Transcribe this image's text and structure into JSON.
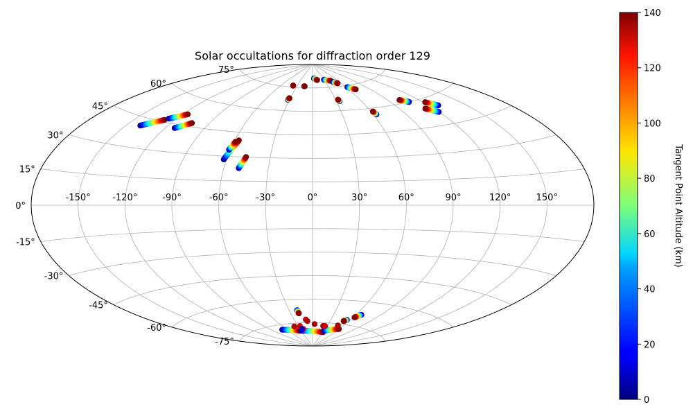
{
  "chart_data": {
    "type": "scatter",
    "projection": "aitoff",
    "title": "Solar occultations for diffraction order 129",
    "lon_ticks": [
      -150,
      -120,
      -90,
      -60,
      -30,
      0,
      30,
      60,
      90,
      120,
      150
    ],
    "lon_tick_labels": [
      "-150°",
      "-120°",
      "-90°",
      "-60°",
      "-30°",
      "0°",
      "30°",
      "60°",
      "90°",
      "120°",
      "150°"
    ],
    "lat_ticks": [
      75,
      60,
      45,
      30,
      15,
      0,
      -15,
      -30,
      -45,
      -60,
      -75
    ],
    "lat_tick_labels": [
      "75°",
      "60°",
      "45°",
      "30°",
      "15°",
      "0°",
      "-15°",
      "-30°",
      "-45°",
      "-60°",
      "-75°"
    ],
    "colorbar": {
      "label": "Tangent Point Altitude (km)",
      "min": 0,
      "max": 140,
      "ticks": [
        0,
        20,
        40,
        60,
        80,
        100,
        120,
        140
      ],
      "tick_labels": [
        "0",
        "20",
        "40",
        "60",
        "80",
        "100",
        "120",
        "140"
      ],
      "colormap": "jet"
    },
    "tracks": [
      {
        "lon0": -140,
        "lat0": 41,
        "lon1": -128,
        "lat1": 46
      },
      {
        "lon0": -126,
        "lat0": 47,
        "lon1": -116,
        "lat1": 51
      },
      {
        "lon0": -113,
        "lat0": 43,
        "lon1": -104,
        "lat1": 47
      },
      {
        "lon0": -62,
        "lat0": 28,
        "lon1": -57,
        "lat1": 40
      },
      {
        "lon0": -61,
        "lat0": 34,
        "lon1": -59,
        "lat1": 39
      },
      {
        "lon0": -50,
        "lat0": 23,
        "lon1": -47,
        "lat1": 30
      },
      {
        "lon0": -38,
        "lat0": 76,
        "lon1": -38,
        "lat1": 76
      },
      {
        "lon0": -32,
        "lat0": 67,
        "lon1": -31,
        "lat1": 68
      },
      {
        "lon0": -15,
        "lat0": 76,
        "lon1": -16,
        "lat1": 76
      },
      {
        "lon0": 4,
        "lat0": 81,
        "lon1": 12,
        "lat1": 80
      },
      {
        "lon0": 30,
        "lat0": 80,
        "lon1": 44,
        "lat1": 79
      },
      {
        "lon0": 47,
        "lat0": 78,
        "lon1": 53,
        "lat1": 77
      },
      {
        "lon0": 62,
        "lat0": 74,
        "lon1": 70,
        "lat1": 72
      },
      {
        "lon0": 34,
        "lat0": 66,
        "lon1": 33,
        "lat1": 67
      },
      {
        "lon0": 63,
        "lat0": 56,
        "lon1": 62,
        "lat1": 58
      },
      {
        "lon0": 108,
        "lat0": 60,
        "lon1": 102,
        "lat1": 62
      },
      {
        "lon0": 120,
        "lat0": 52,
        "lon1": 113,
        "lat1": 55
      },
      {
        "lon0": 128,
        "lat0": 55,
        "lon1": 122,
        "lat1": 58
      },
      {
        "lon0": -70,
        "lat0": -78,
        "lon1": -32,
        "lat1": -80
      },
      {
        "lon0": -30,
        "lat0": -80,
        "lon1": 30,
        "lat1": -81
      },
      {
        "lon0": 30,
        "lat0": -80,
        "lon1": 60,
        "lat1": -78
      },
      {
        "lon0": -20,
        "lat0": -67,
        "lon1": -19,
        "lat1": -69
      },
      {
        "lon0": 67,
        "lat0": -68,
        "lon1": 62,
        "lat1": -70
      },
      {
        "lon0": 55,
        "lat0": -72,
        "lon1": 52,
        "lat1": -73
      }
    ],
    "scatter_points": [
      {
        "lon": -38,
        "lat": -77,
        "alt": 135
      },
      {
        "lon": -26,
        "lat": -77,
        "alt": 130
      },
      {
        "lon": -11,
        "lat": -73,
        "alt": 130
      },
      {
        "lon": -9,
        "lat": -74,
        "alt": 135
      },
      {
        "lon": 4,
        "lat": -76,
        "alt": 135
      },
      {
        "lon": 22,
        "lat": -77,
        "alt": 135
      },
      {
        "lon": 26,
        "lat": -77,
        "alt": 130
      },
      {
        "lon": 50,
        "lat": -76,
        "alt": 135
      },
      {
        "lon": -22,
        "lat": -79,
        "alt": 120
      },
      {
        "lon": -25,
        "lat": -79,
        "alt": 10
      }
    ]
  }
}
